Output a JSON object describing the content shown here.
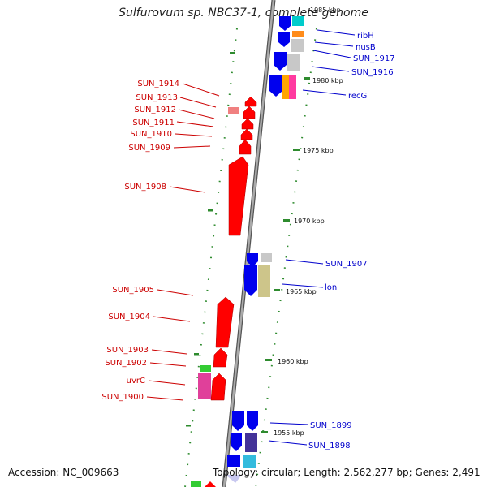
{
  "title": "Sulfurovum sp. NBC37-1, complete genome",
  "footer": {
    "accession": "Accession: NC_009663",
    "topology": "Topology: circular; Length: 2,562,277 bp; Genes: 2,491"
  },
  "ticks": [
    "1985 kbp",
    "1980 kbp",
    "1975 kbp",
    "1970 kbp",
    "1965 kbp",
    "1960 kbp",
    "1955 kbp"
  ],
  "colors": {
    "reverse_labels": "#cc0000",
    "forward_labels": "#0000cc",
    "backbone": "#888888",
    "tick_mark": "#228b22"
  },
  "reverse_genes": [
    "SUN_1914",
    "SUN_1913",
    "SUN_1912",
    "SUN_1911",
    "SUN_1910",
    "SUN_1909",
    "SUN_1908",
    "SUN_1905",
    "SUN_1904",
    "SUN_1903",
    "SUN_1902",
    "uvrC",
    "SUN_1900"
  ],
  "forward_genes": [
    "ribH",
    "nusB",
    "SUN_1917",
    "SUN_1916",
    "recG",
    "SUN_1907",
    "lon",
    "SUN_1899",
    "SUN_1898"
  ]
}
